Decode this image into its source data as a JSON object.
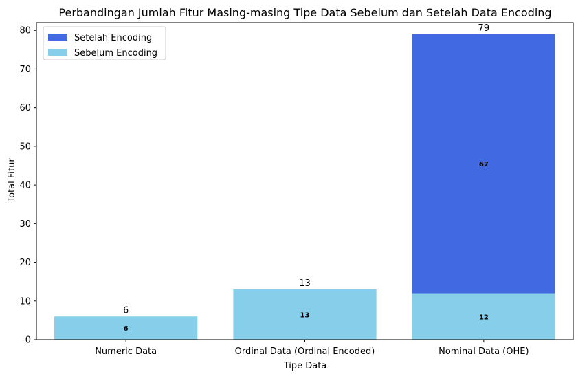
{
  "chart_data": {
    "type": "bar",
    "stacked": true,
    "title": "Perbandingan Jumlah Fitur Masing-masing Tipe Data Sebelum dan Setelah Data Encoding",
    "xlabel": "Tipe Data",
    "ylabel": "Total Fitur",
    "ylim": [
      0,
      82
    ],
    "yticks": [
      0,
      10,
      20,
      30,
      40,
      50,
      60,
      70,
      80
    ],
    "grid": false,
    "legend_position": "top-left",
    "categories": [
      "Numeric Data",
      "Ordinal Data (Ordinal Encoded)",
      "Nominal Data (OHE)"
    ],
    "series": [
      {
        "name": "Sebelum Encoding",
        "color": "#87ceeb",
        "values": [
          6,
          13,
          12
        ],
        "segment_labels": [
          "6",
          "13",
          "12"
        ]
      },
      {
        "name": "Setelah Encoding",
        "color": "#4169e1",
        "values": [
          0,
          0,
          67
        ],
        "segment_labels": [
          "",
          "",
          "67"
        ]
      }
    ],
    "totals": [
      "6",
      "13",
      "79"
    ],
    "legend_order": [
      "Setelah Encoding",
      "Sebelum Encoding"
    ]
  }
}
